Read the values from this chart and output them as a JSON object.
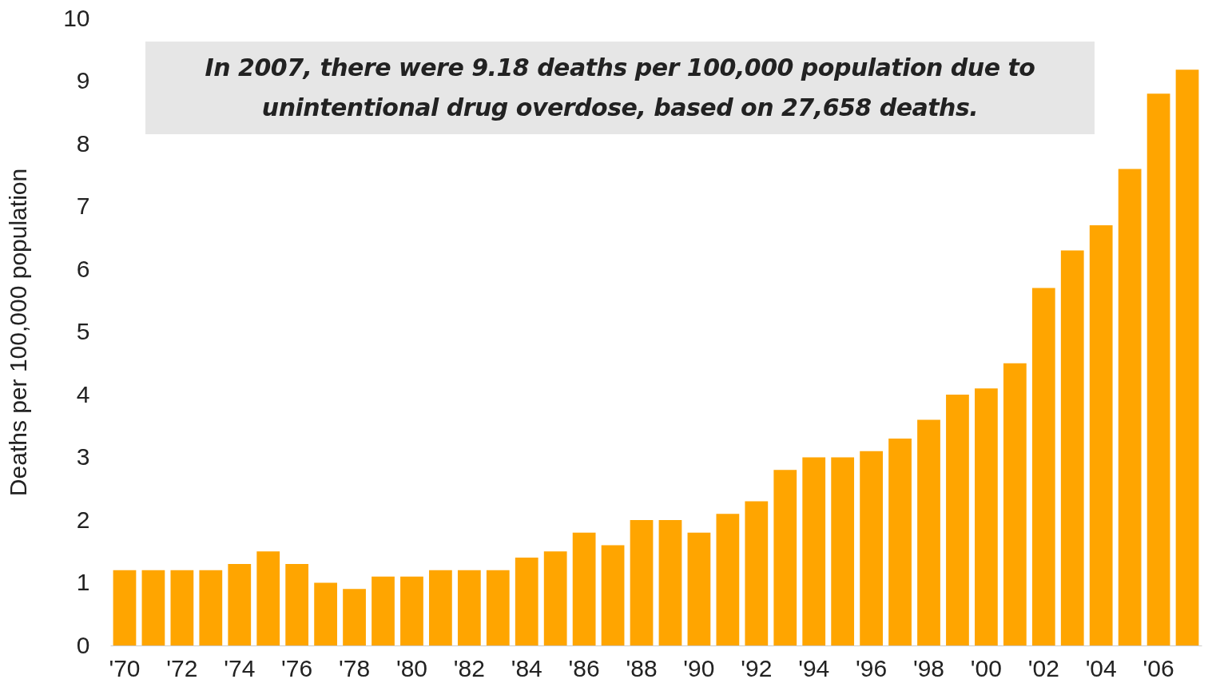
{
  "chart_data": {
    "type": "bar",
    "ylabel": "Deaths per 100,000 population",
    "categories": [
      "'70",
      null,
      "'72",
      null,
      "'74",
      null,
      "'76",
      null,
      "'78",
      null,
      "'80",
      null,
      "'82",
      null,
      "'84",
      null,
      "'86",
      null,
      "'88",
      null,
      "'90",
      null,
      "'92",
      null,
      "'94",
      null,
      "'96",
      null,
      "'98",
      null,
      "'00",
      null,
      "'02",
      null,
      "'04",
      null,
      "'06",
      null
    ],
    "values": [
      1.2,
      1.2,
      1.2,
      1.2,
      1.3,
      1.5,
      1.3,
      1.0,
      0.9,
      1.1,
      1.1,
      1.2,
      1.2,
      1.2,
      1.4,
      1.5,
      1.8,
      1.6,
      2.0,
      2.0,
      1.8,
      2.1,
      2.3,
      2.8,
      3.0,
      3.0,
      3.1,
      3.3,
      3.6,
      4.0,
      4.1,
      4.5,
      5.7,
      6.3,
      6.7,
      7.6,
      8.8,
      9.18
    ],
    "color": "#ffa500",
    "ylim": [
      0,
      10
    ],
    "yticks": [
      0,
      1,
      2,
      3,
      4,
      5,
      6,
      7,
      8,
      9,
      10
    ],
    "grid": false,
    "annotations": [
      "In 2007, there were 9.18 deaths per 100,000 population due to unintentional drug overdose, based on 27,658 deaths."
    ]
  }
}
